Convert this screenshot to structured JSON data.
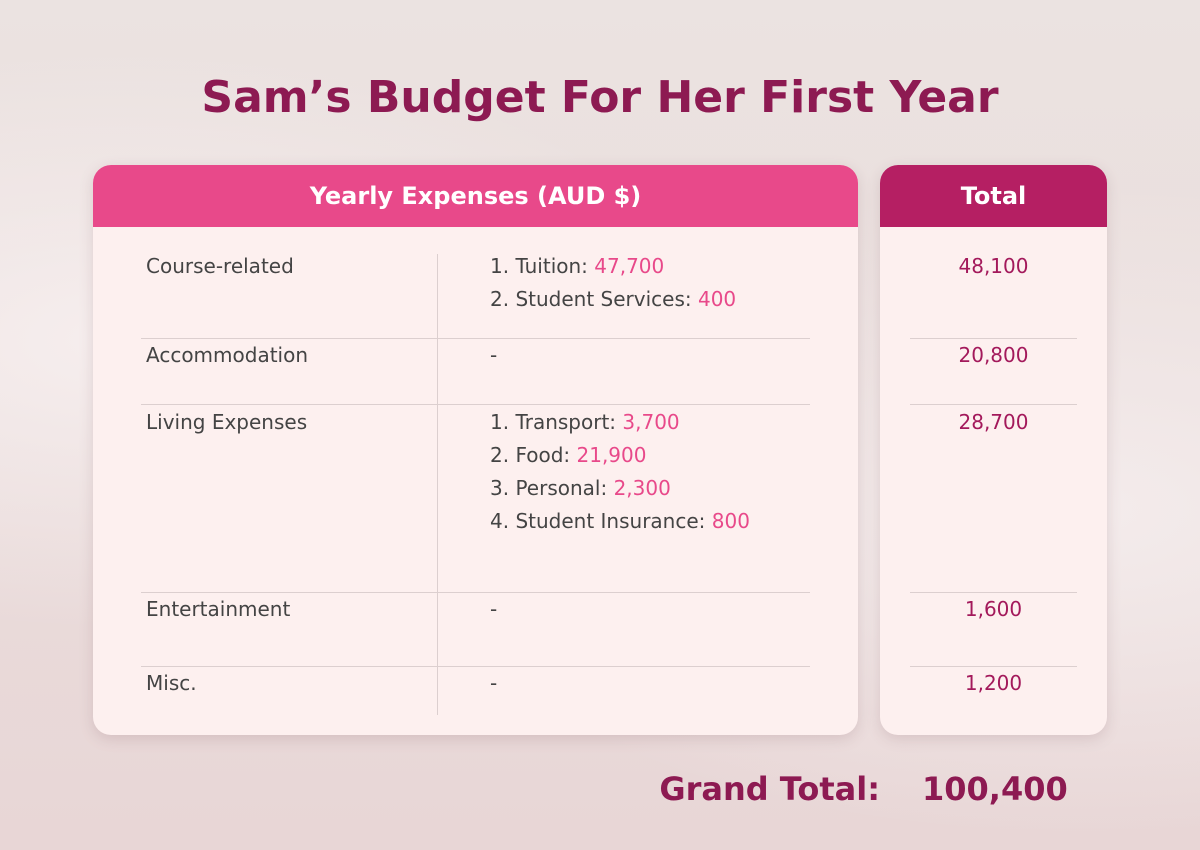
{
  "title": "Sam’s Budget For Her First Year",
  "table": {
    "header": "Yearly Expenses (AUD $)",
    "total_header": "Total",
    "rows": [
      {
        "category": "Course-related",
        "items": [
          {
            "label": "1.  Tuition:",
            "value": "47,700"
          },
          {
            "label": "2. Student Services:",
            "value": "400"
          }
        ],
        "total": "48,100"
      },
      {
        "category": "Accommodation",
        "details": "-",
        "total": "20,800"
      },
      {
        "category": "Living Expenses",
        "items": [
          {
            "label": "1. Transport:",
            "value": "3,700"
          },
          {
            "label": "2. Food:",
            "value": "21,900"
          },
          {
            "label": "3. Personal:",
            "value": "2,300"
          },
          {
            "label": "4. Student Insurance:",
            "value": "800"
          }
        ],
        "total": "28,700"
      },
      {
        "category": "Entertainment",
        "details": "-",
        "total": "1,600"
      },
      {
        "category": "Misc.",
        "details": "-",
        "total": "1,200"
      }
    ]
  },
  "grand_total": {
    "label": "Grand Total:",
    "value": "100,400"
  }
}
